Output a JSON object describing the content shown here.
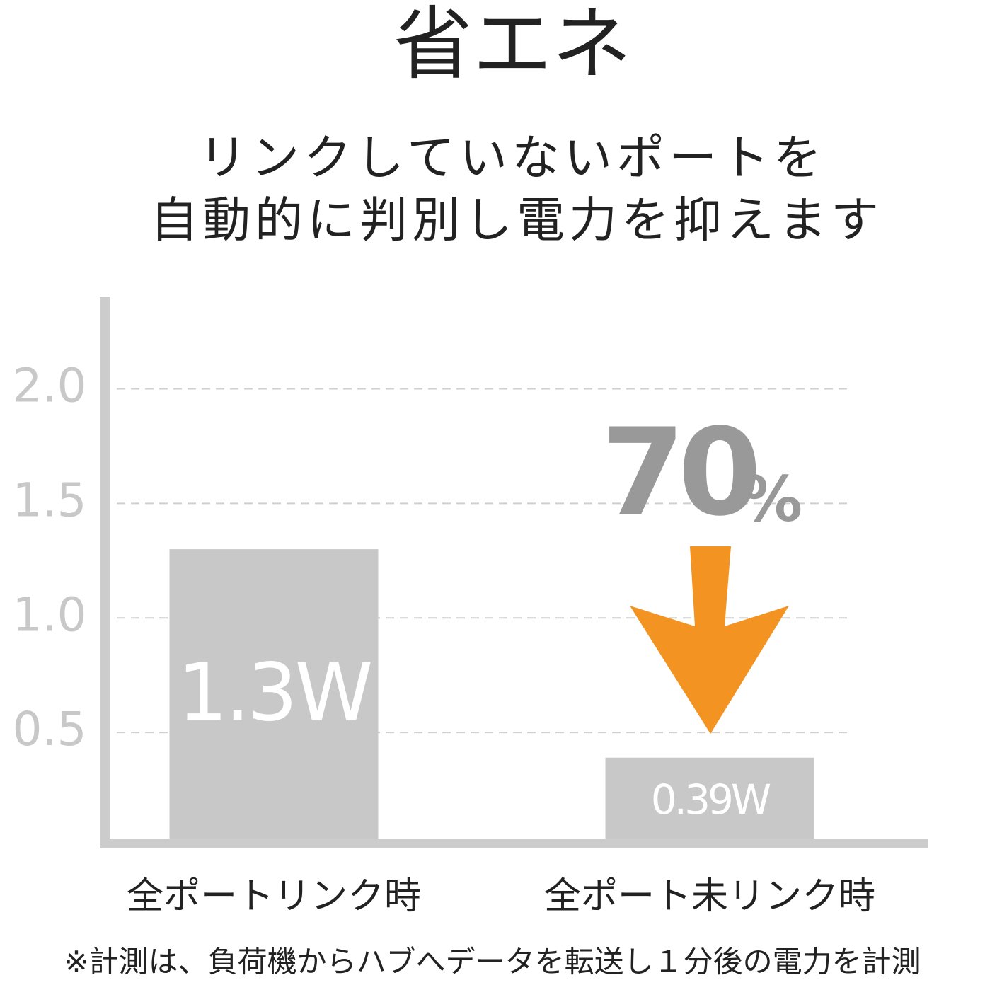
{
  "chart_data": {
    "type": "bar",
    "title": "省エネ",
    "subtitle": [
      "リンクしていないポートを",
      "自動的に判別し電力を抑えます"
    ],
    "categories": [
      "全ポートリンク時",
      "全ポート未リンク時"
    ],
    "values": [
      1.3,
      0.39
    ],
    "value_labels": [
      "1.3W",
      "0.39W"
    ],
    "color": "#c8c8c8",
    "ylim": [
      0,
      2.4
    ],
    "yticks": [
      0.5,
      {
        "value": 1,
        "label": "1.0"
      },
      1.5,
      {
        "value": 2,
        "label": "2.0"
      }
    ],
    "grid": true,
    "annotation": {
      "value": "70",
      "unit": "%"
    },
    "footnote": "※計測は、負荷機からハブへデータを転送し１分後の電力を計測"
  }
}
